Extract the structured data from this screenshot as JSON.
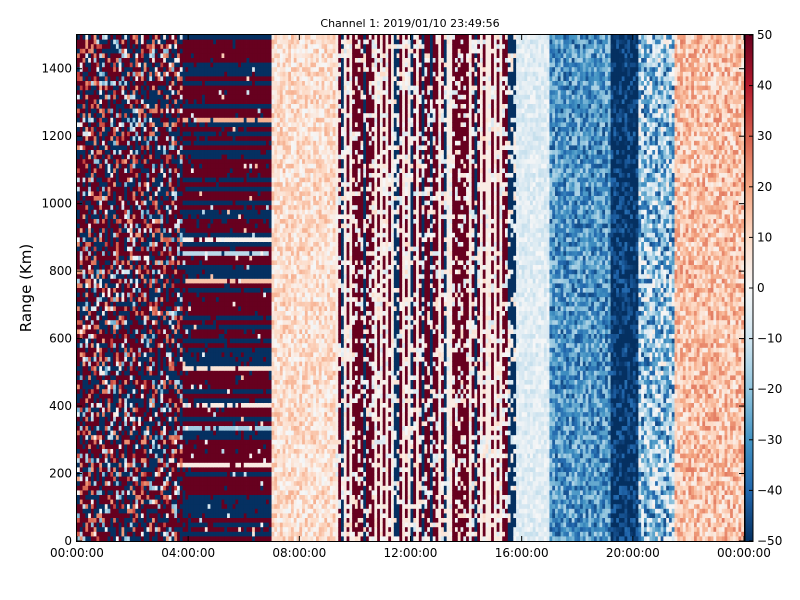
{
  "chart_data": {
    "type": "heatmap",
    "title": "Channel 1: 2019/01/10 23:49:56",
    "xlabel": "",
    "ylabel": "Range (Km)",
    "x_ticks": [
      "00:00:00",
      "04:00:00",
      "08:00:00",
      "12:00:00",
      "16:00:00",
      "20:00:00",
      "00:00:00"
    ],
    "x_range_hours": [
      0,
      24
    ],
    "y_ticks": [
      0,
      200,
      400,
      600,
      800,
      1000,
      1200,
      1400
    ],
    "ylim": [
      0,
      1500
    ],
    "colorbar": {
      "ticks": [
        50,
        40,
        30,
        20,
        10,
        0,
        -10,
        -20,
        -30,
        -40,
        -50
      ],
      "range": [
        -50,
        50
      ],
      "colormap": "RdBu_r",
      "stops": [
        "#053061",
        "#2166ac",
        "#4393c3",
        "#92c5de",
        "#d1e5f0",
        "#f7f7f7",
        "#fddbc7",
        "#f4a582",
        "#d6604d",
        "#b2182b",
        "#67001f"
      ]
    },
    "grid": false,
    "time_segments": [
      {
        "start_hour": 0.0,
        "end_hour": 3.8,
        "pattern": "saturated random noise",
        "typical_mean": 0,
        "spread": 75
      },
      {
        "start_hour": 3.8,
        "end_hour": 7.0,
        "pattern": "horizontal banding",
        "typical_mean": 0,
        "spread": 60
      },
      {
        "start_hour": 7.0,
        "end_hour": 9.3,
        "pattern": "mostly weak positive",
        "typical_mean": 8,
        "spread": 10
      },
      {
        "start_hour": 9.3,
        "end_hour": 15.8,
        "pattern": "vertical striping",
        "typical_mean": 0,
        "spread": 50
      },
      {
        "start_hour": 15.8,
        "end_hour": 17.0,
        "pattern": "near zero",
        "typical_mean": -6,
        "spread": 6
      },
      {
        "start_hour": 17.0,
        "end_hour": 19.2,
        "pattern": "increasing negative",
        "typical_mean": -30,
        "spread": 15
      },
      {
        "start_hour": 19.2,
        "end_hour": 20.2,
        "pattern": "strong negative",
        "typical_mean": -50,
        "spread": 12
      },
      {
        "start_hour": 20.2,
        "end_hour": 21.5,
        "pattern": "mixed negative",
        "typical_mean": -20,
        "spread": 25
      },
      {
        "start_hour": 21.5,
        "end_hour": 24.0,
        "pattern": "weak positive",
        "typical_mean": 14,
        "spread": 12
      }
    ]
  }
}
